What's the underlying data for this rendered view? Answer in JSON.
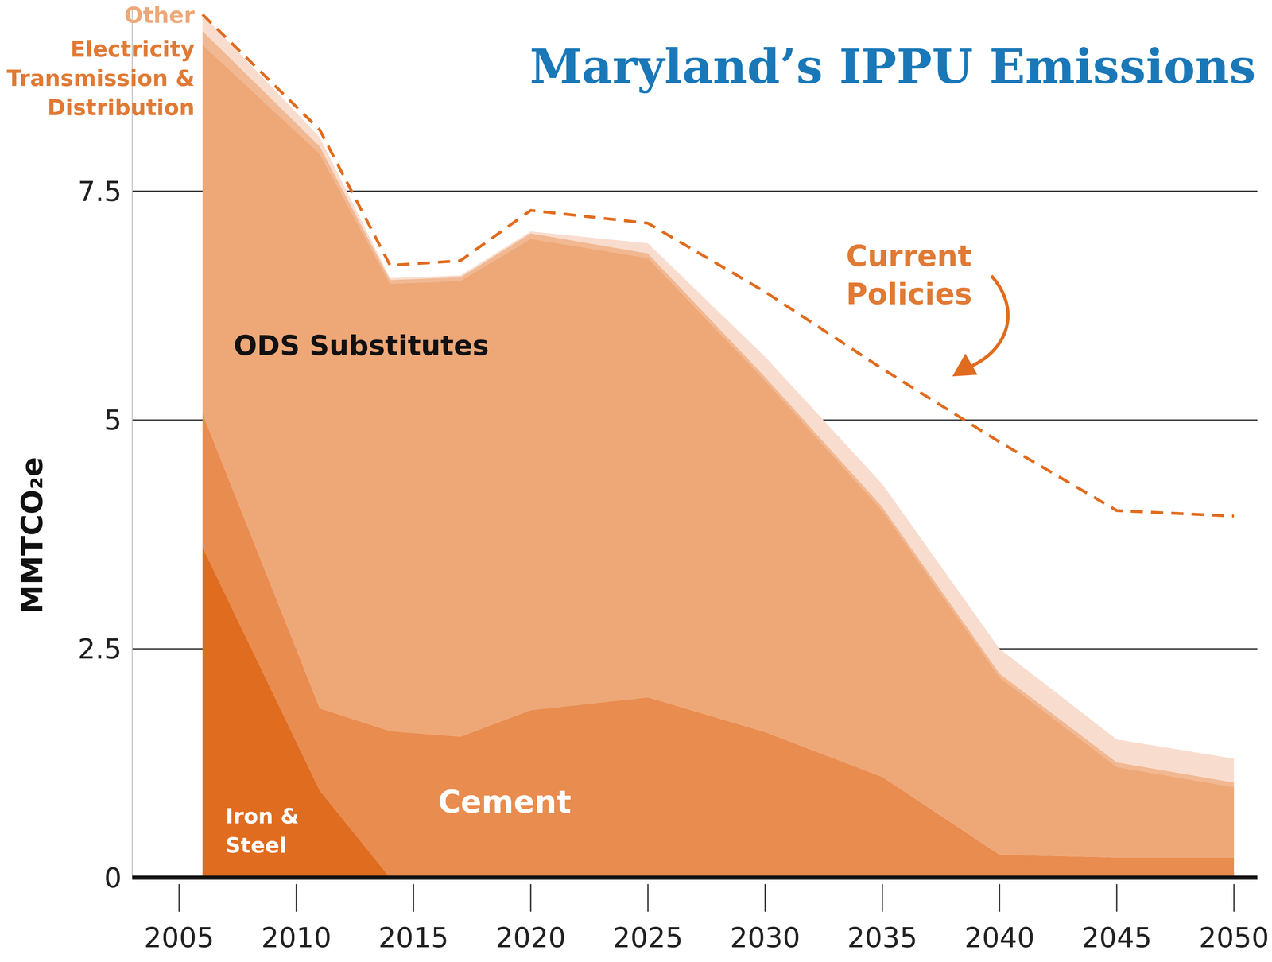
{
  "chart_data": {
    "type": "area",
    "title": "Maryland’s IPPU Emissions",
    "ylabel": "MMTCO₂e",
    "stacked": true,
    "grid": true,
    "x": [
      2006,
      2011,
      2014,
      2017,
      2020,
      2025,
      2030,
      2035,
      2040,
      2045,
      2050
    ],
    "xlim": [
      2003,
      2051
    ],
    "xticks": [
      2005,
      2010,
      2015,
      2020,
      2025,
      2030,
      2035,
      2040,
      2045,
      2050
    ],
    "ylim": [
      0,
      9.5
    ],
    "yticks": [
      0,
      2.5,
      5,
      7.5
    ],
    "series": [
      {
        "name": "Iron & Steel",
        "color": "#e06c1f",
        "values": [
          3.61,
          0.95,
          0,
          0,
          0,
          0,
          0,
          0,
          0,
          0,
          0
        ]
      },
      {
        "name": "Cement",
        "color": "#e98c4f",
        "values": [
          1.46,
          0.9,
          1.6,
          1.54,
          1.83,
          1.97,
          1.59,
          1.1,
          0.25,
          0.22,
          0.22
        ]
      },
      {
        "name": "ODS Substitutes",
        "color": "#eea878",
        "values": [
          4.03,
          6.06,
          4.89,
          4.98,
          5.15,
          4.8,
          3.84,
          2.91,
          1.94,
          0.99,
          0.77
        ]
      },
      {
        "name": "Electricity Transmission & Distribution",
        "color": "#f1b892",
        "values": [
          0.15,
          0.08,
          0.04,
          0.04,
          0.06,
          0.05,
          0.04,
          0.04,
          0.04,
          0.05,
          0.05
        ]
      },
      {
        "name": "Other",
        "color": "#f8ddcf",
        "values": [
          0.18,
          0.1,
          0.02,
          0.02,
          0.02,
          0.11,
          0.22,
          0.25,
          0.27,
          0.25,
          0.26
        ]
      },
      {
        "name": "Current Policies",
        "type": "line",
        "line_style": "dashed",
        "color": "#e06c1f",
        "values": [
          9.43,
          8.17,
          6.69,
          6.74,
          7.29,
          7.15,
          6.4,
          5.56,
          4.76,
          4.01,
          3.95
        ]
      }
    ]
  }
}
